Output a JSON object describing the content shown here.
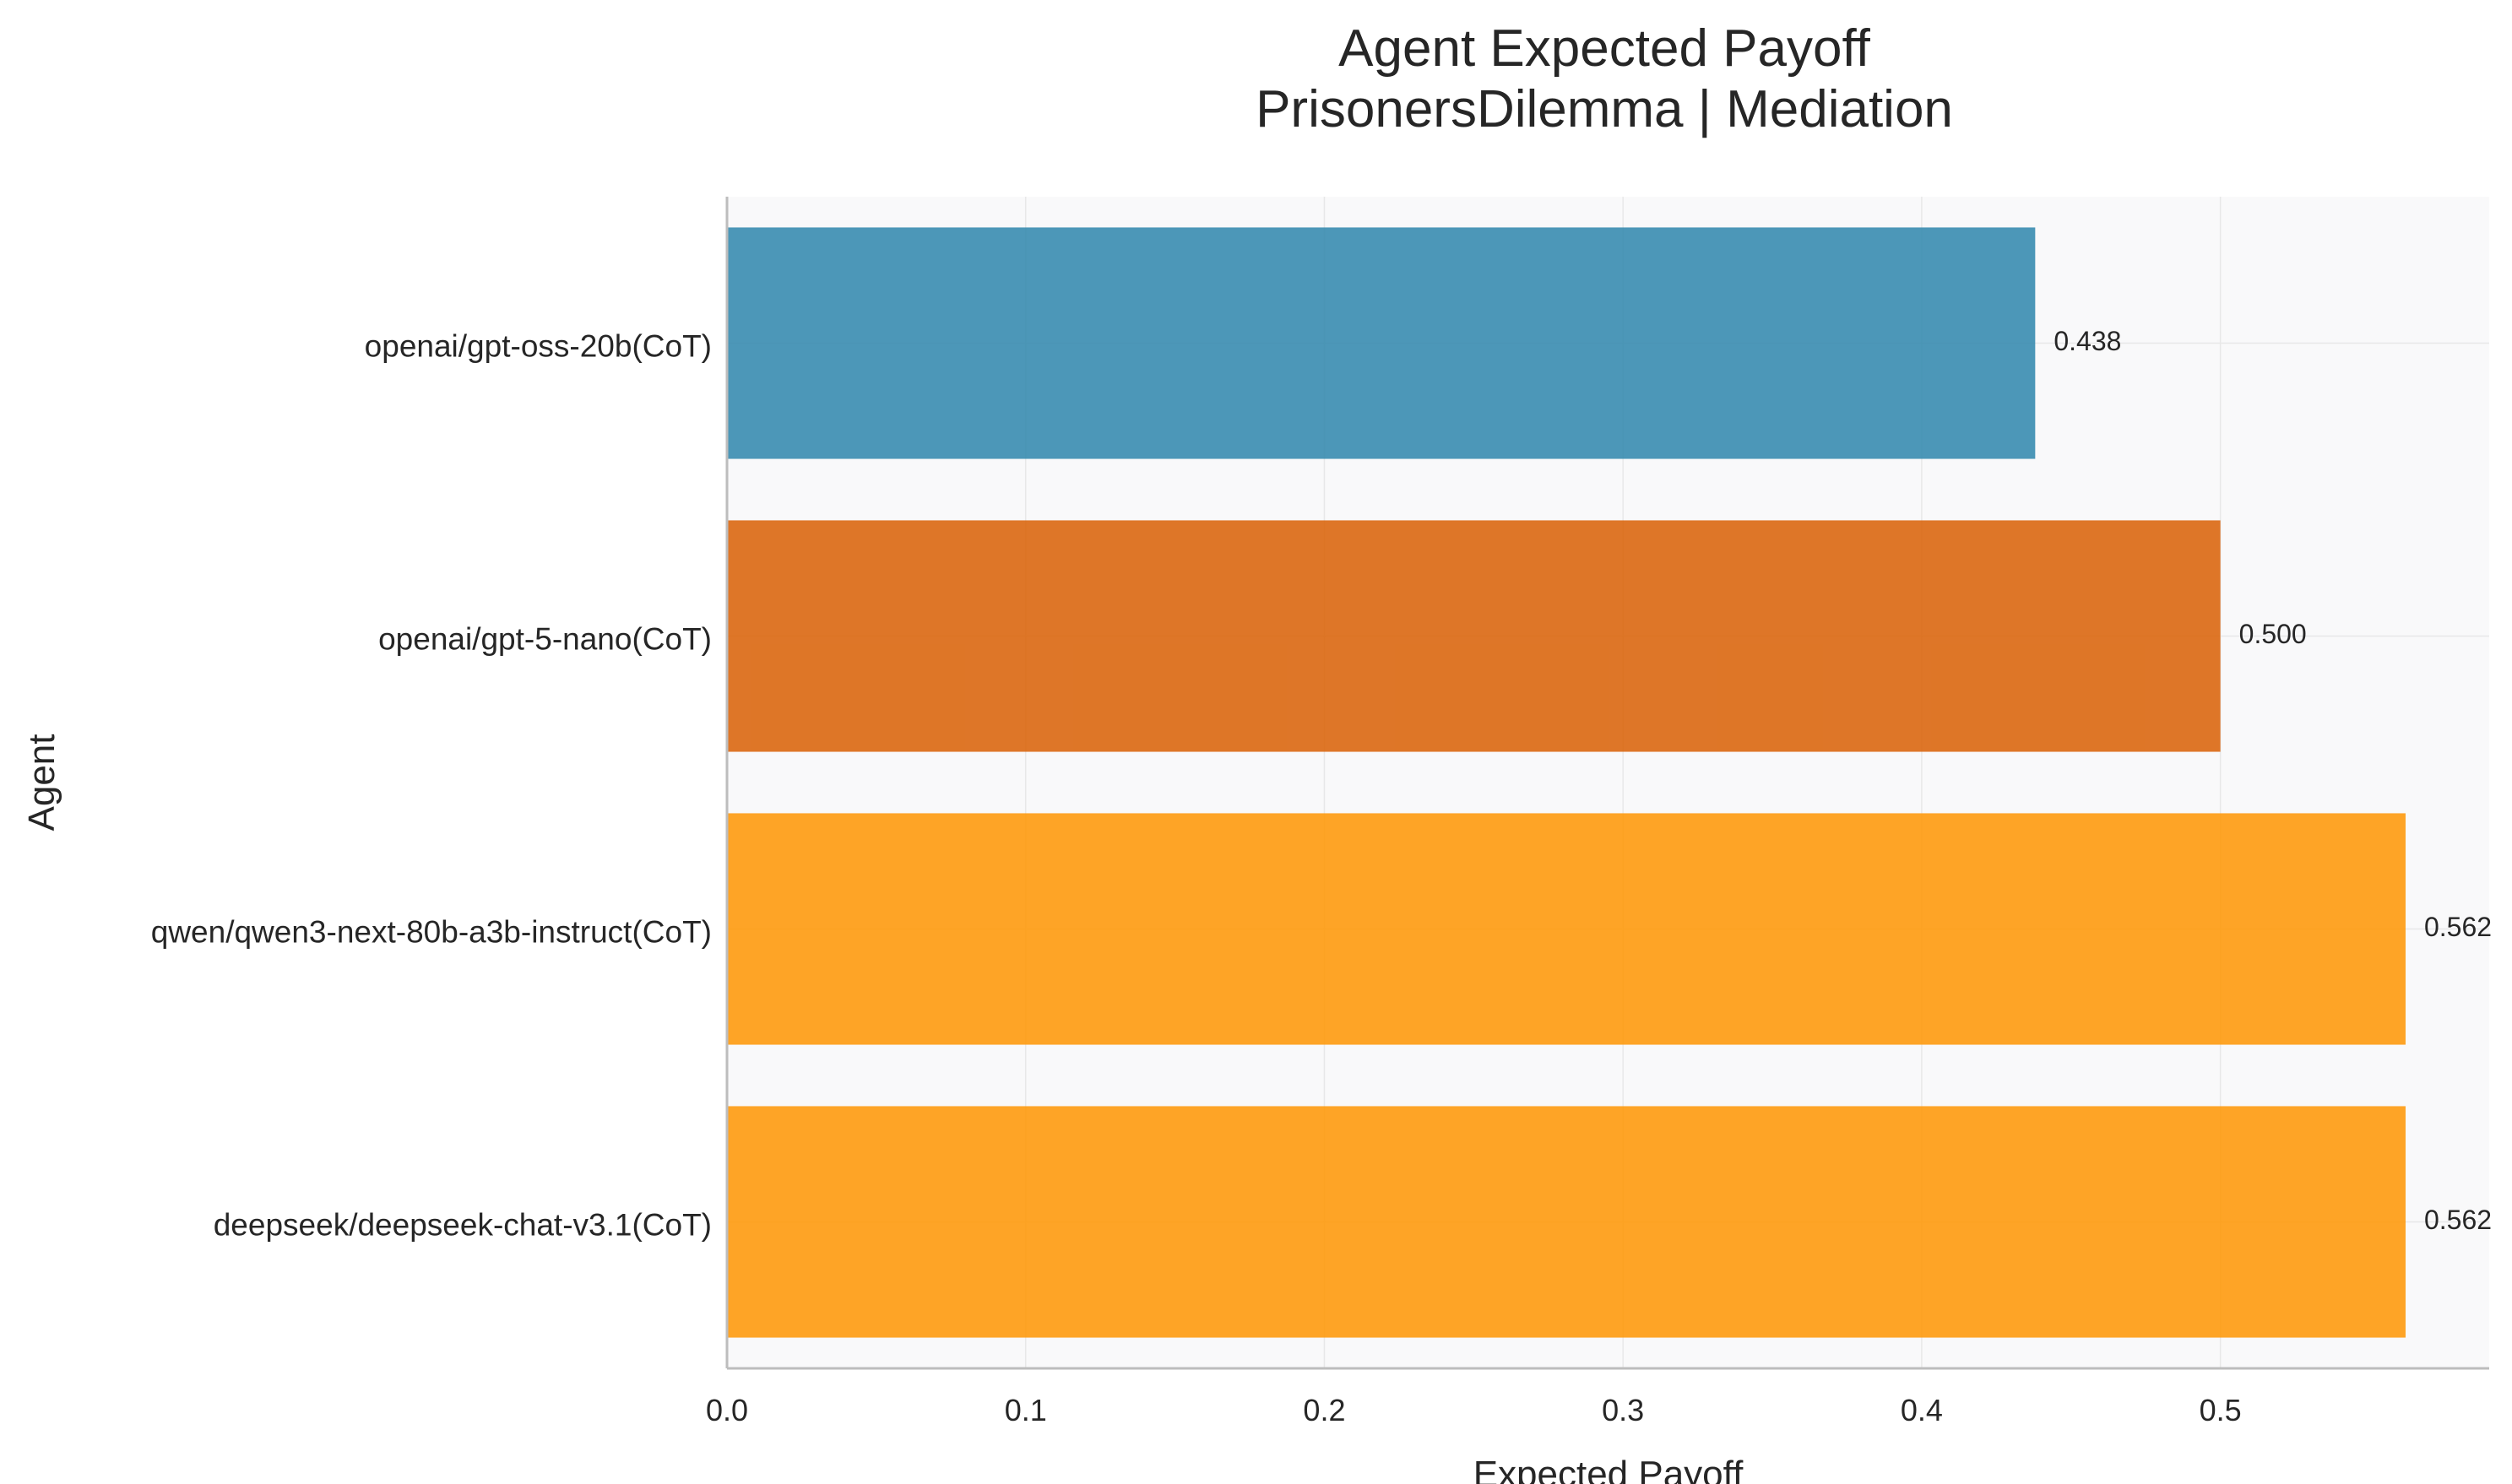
{
  "chart_data": {
    "type": "bar",
    "orientation": "horizontal",
    "title": "Agent Expected Payoff",
    "subtitle": "PrisonersDilemma | Mediation",
    "xlabel": "Expected Payoff",
    "ylabel": "Agent",
    "xlim": [
      0.0,
      0.59
    ],
    "xticks": [
      0.0,
      0.1,
      0.2,
      0.3,
      0.4,
      0.5
    ],
    "xtick_labels": [
      "0.0",
      "0.1",
      "0.2",
      "0.3",
      "0.4",
      "0.5"
    ],
    "grid": true,
    "categories": [
      "openai/gpt-oss-20b(CoT)",
      "openai/gpt-5-nano(CoT)",
      "qwen/qwen3-next-80b-a3b-instruct(CoT)",
      "deepseek/deepseek-chat-v3.1(CoT)"
    ],
    "values": [
      0.438,
      0.5,
      0.562,
      0.562
    ],
    "value_labels": [
      "0.438",
      "0.500",
      "0.562",
      "0.562"
    ],
    "colors": [
      "#2E86AB",
      "#D95F02",
      "#FF9500",
      "#FF9500"
    ]
  }
}
